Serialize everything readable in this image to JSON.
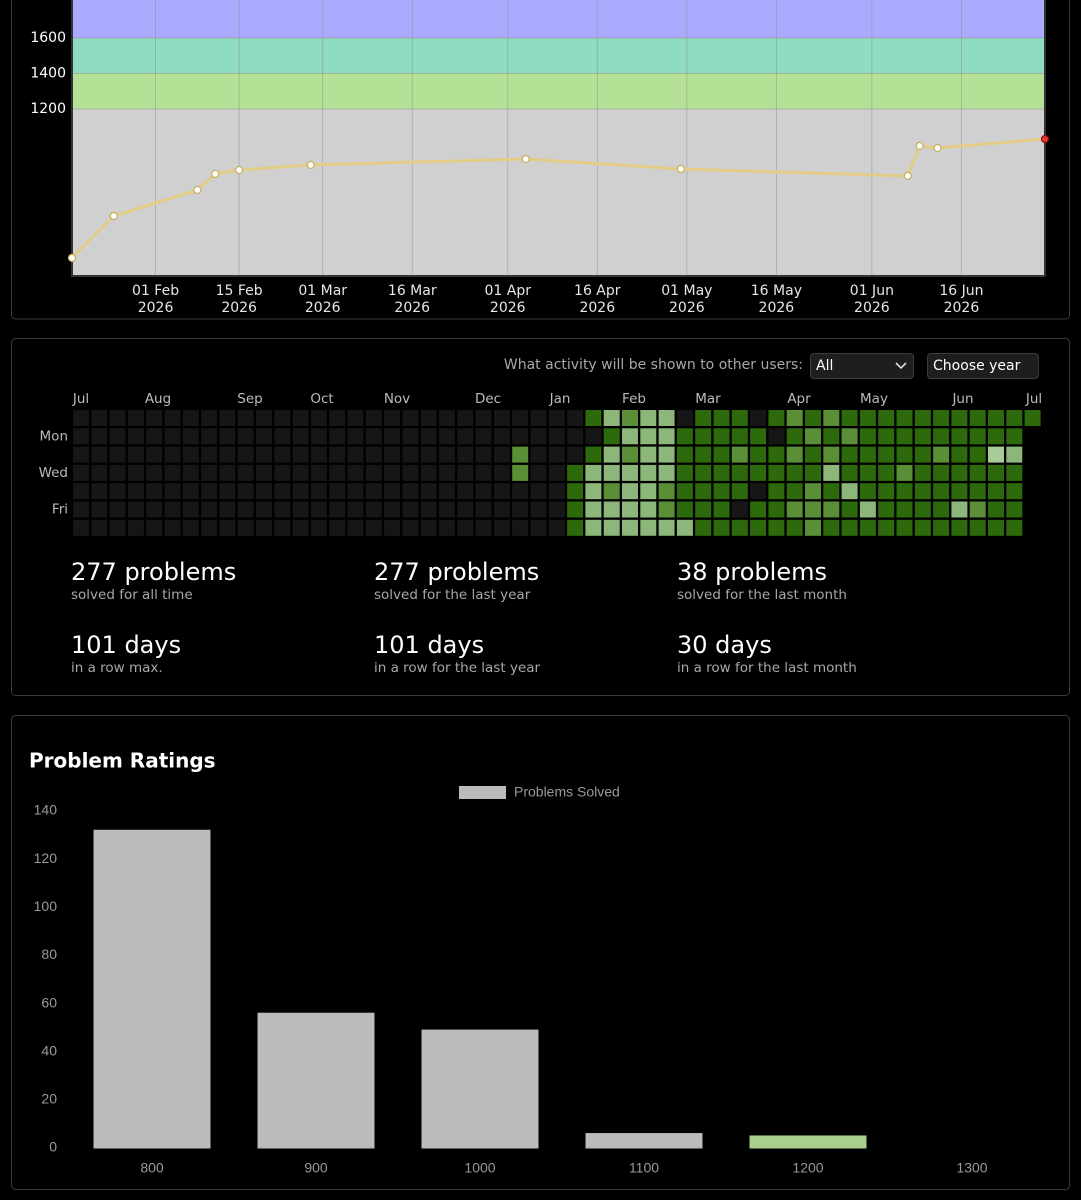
{
  "chart_data": [
    {
      "type": "line",
      "x": [
        "2026-01-18",
        "2026-01-25",
        "2026-02-08",
        "2026-02-11",
        "2026-02-15",
        "2026-02-27",
        "2026-04-04",
        "2026-04-30",
        "2026-06-07",
        "2026-06-09",
        "2026-06-12",
        "2026-06-30"
      ],
      "values": [
        361,
        597,
        744,
        834,
        856,
        885,
        918,
        862,
        823,
        992,
        980,
        1031
      ],
      "color": "#e2cc86",
      "last_point_color": "#e53935",
      "xlim": [
        "2026-01-18",
        "2026-06-30"
      ],
      "ylim": [
        259,
        1814
      ],
      "xticks": [
        {
          "value": "2026-02-01",
          "label": "01 Feb 2026"
        },
        {
          "value": "2026-02-15",
          "label": "15 Feb 2026"
        },
        {
          "value": "2026-03-01",
          "label": "01 Mar 2026"
        },
        {
          "value": "2026-03-16",
          "label": "16 Mar 2026"
        },
        {
          "value": "2026-04-01",
          "label": "01 Apr 2026"
        },
        {
          "value": "2026-04-16",
          "label": "16 Apr 2026"
        },
        {
          "value": "2026-05-01",
          "label": "01 May 2026"
        },
        {
          "value": "2026-05-16",
          "label": "16 May 2026"
        },
        {
          "value": "2026-06-01",
          "label": "01 Jun 2026"
        },
        {
          "value": "2026-06-16",
          "label": "16 Jun 2026"
        }
      ],
      "yticks": [
        1200,
        1400,
        1600
      ],
      "bands": [
        {
          "max": 1200,
          "color": "#d0d0d0"
        },
        {
          "min": 1200,
          "max": 1400,
          "color": "#b5e196"
        },
        {
          "min": 1400,
          "max": 1600,
          "color": "#8fdcc0"
        },
        {
          "min": 1600,
          "color": "#aaaaff"
        }
      ],
      "grid": true
    },
    {
      "type": "bar",
      "title": "Problem Ratings",
      "categories": [
        "800",
        "900",
        "1000",
        "1100",
        "1200",
        "1300"
      ],
      "series": [
        {
          "name": "Problems Solved",
          "color": "#bbbbbb",
          "values": [
            132,
            56,
            49,
            6,
            5,
            0
          ]
        }
      ],
      "bar_colors": [
        "#bbbbbb",
        "#bbbbbb",
        "#bbbbbb",
        "#bbbbbb",
        "#a8cf8e",
        "#5f9a45"
      ],
      "ylim": [
        0,
        140
      ],
      "yticks": [
        0,
        20,
        40,
        60,
        80,
        100,
        120,
        140
      ],
      "grid": false
    }
  ],
  "activity": {
    "prompt": "What activity will be shown to other users:",
    "visibility": "All",
    "year_select": "Choose year",
    "months": [
      "Jul",
      "Aug",
      "Sep",
      "Oct",
      "Nov",
      "Dec",
      "Jan",
      "Feb",
      "Mar",
      "Apr",
      "May",
      "Jun",
      "Jul"
    ],
    "days": [
      "Mon",
      "Wed",
      "Fri"
    ],
    "level_colors": [
      "#161616",
      "#2d6a0c",
      "#5b8f37",
      "#8cb67a",
      "#a9cb97"
    ],
    "rows": [
      [
        0,
        0,
        0,
        0,
        0,
        0,
        0,
        0,
        0,
        0,
        0,
        0,
        0,
        0,
        0,
        0,
        0,
        0,
        0,
        0,
        0,
        0,
        0,
        0,
        0,
        0,
        0,
        0,
        1,
        3,
        2,
        3,
        3,
        0,
        1,
        1,
        1,
        0,
        1,
        2,
        1,
        2,
        1,
        1,
        1,
        1,
        1,
        1,
        1,
        1,
        1,
        1,
        1
      ],
      [
        0,
        0,
        0,
        0,
        0,
        0,
        0,
        0,
        0,
        0,
        0,
        0,
        0,
        0,
        0,
        0,
        0,
        0,
        0,
        0,
        0,
        0,
        0,
        0,
        0,
        0,
        0,
        0,
        0,
        1,
        3,
        3,
        3,
        1,
        1,
        1,
        1,
        1,
        0,
        1,
        2,
        1,
        2,
        1,
        1,
        1,
        1,
        1,
        1,
        1,
        1,
        1,
        null
      ],
      [
        0,
        0,
        0,
        0,
        0,
        0,
        0,
        0,
        0,
        0,
        0,
        0,
        0,
        0,
        0,
        0,
        0,
        0,
        0,
        0,
        0,
        0,
        0,
        0,
        2,
        0,
        0,
        0,
        1,
        3,
        2,
        3,
        3,
        1,
        1,
        1,
        2,
        1,
        1,
        2,
        1,
        2,
        1,
        1,
        1,
        1,
        1,
        2,
        1,
        1,
        4,
        3,
        null
      ],
      [
        0,
        0,
        0,
        0,
        0,
        0,
        0,
        0,
        0,
        0,
        0,
        0,
        0,
        0,
        0,
        0,
        0,
        0,
        0,
        0,
        0,
        0,
        0,
        0,
        2,
        0,
        0,
        1,
        3,
        3,
        3,
        3,
        3,
        1,
        1,
        1,
        1,
        1,
        1,
        1,
        1,
        3,
        1,
        1,
        1,
        2,
        1,
        1,
        1,
        1,
        1,
        1,
        null
      ],
      [
        0,
        0,
        0,
        0,
        0,
        0,
        0,
        0,
        0,
        0,
        0,
        0,
        0,
        0,
        0,
        0,
        0,
        0,
        0,
        0,
        0,
        0,
        0,
        0,
        0,
        0,
        0,
        1,
        3,
        2,
        3,
        3,
        2,
        1,
        1,
        1,
        1,
        0,
        1,
        1,
        2,
        1,
        3,
        1,
        1,
        1,
        1,
        1,
        1,
        1,
        1,
        1,
        null
      ],
      [
        0,
        0,
        0,
        0,
        0,
        0,
        0,
        0,
        0,
        0,
        0,
        0,
        0,
        0,
        0,
        0,
        0,
        0,
        0,
        0,
        0,
        0,
        0,
        0,
        0,
        0,
        0,
        1,
        3,
        3,
        3,
        3,
        2,
        1,
        1,
        1,
        0,
        1,
        1,
        2,
        2,
        2,
        1,
        3,
        1,
        1,
        1,
        1,
        3,
        2,
        1,
        1,
        null
      ],
      [
        0,
        0,
        0,
        0,
        0,
        0,
        0,
        0,
        0,
        0,
        0,
        0,
        0,
        0,
        0,
        0,
        0,
        0,
        0,
        0,
        0,
        0,
        0,
        0,
        0,
        0,
        0,
        1,
        3,
        3,
        3,
        3,
        3,
        3,
        1,
        1,
        1,
        1,
        1,
        1,
        2,
        1,
        1,
        1,
        1,
        1,
        1,
        1,
        1,
        1,
        1,
        1,
        null
      ]
    ]
  },
  "stats": [
    {
      "value": "277 problems",
      "caption": "solved for all time"
    },
    {
      "value": "277 problems",
      "caption": "solved for the last year"
    },
    {
      "value": "38 problems",
      "caption": "solved for the last month"
    },
    {
      "value": "101 days",
      "caption": "in a row max."
    },
    {
      "value": "101 days",
      "caption": "in a row for the last year"
    },
    {
      "value": "30 days",
      "caption": "in a row for the last month"
    }
  ]
}
